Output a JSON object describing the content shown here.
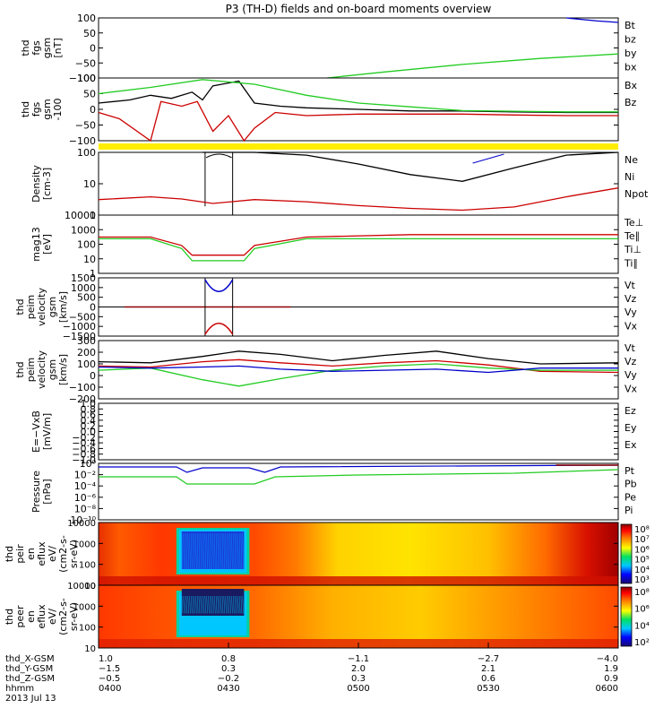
{
  "title": "P3 (TH-D) fields and on-board moments overview",
  "colors": {
    "black": "#000000",
    "red": "#cc0000",
    "green": "#22cc22",
    "blue": "#0000cc",
    "yellow": "#ffee00",
    "darkred": "#8b0000"
  },
  "chart_data": [
    {
      "type": "line",
      "panel": "fgs",
      "ylabel": [
        "thd",
        "fgs",
        "gsm",
        "[nT]"
      ],
      "ylim": [
        -100,
        100
      ],
      "ytick_labels": [
        "100",
        "50",
        "0",
        "−50",
        "−100"
      ],
      "legend": [
        {
          "label": "Bt",
          "color": "#000000"
        },
        {
          "label": "bz",
          "color": "#cc0000"
        },
        {
          "label": "by",
          "color": "#22cc22"
        },
        {
          "label": "bx",
          "color": "#0000cc"
        }
      ],
      "series": [
        {
          "name": "by",
          "color": "#22cc22",
          "x": [
            0.44,
            0.55,
            0.7,
            0.85,
            1.0
          ],
          "y": [
            -100,
            -80,
            -55,
            -35,
            -20
          ]
        },
        {
          "name": "bx",
          "color": "#0000cc",
          "x": [
            0.9,
            0.96,
            1.0
          ],
          "y": [
            100,
            90,
            85
          ]
        }
      ]
    },
    {
      "type": "line",
      "panel": "fgs_nocal",
      "ylabel": [
        "thd",
        "fgs",
        "gsm",
        "-100"
      ],
      "ylim": [
        -100,
        100
      ],
      "ytick_labels": [
        "100",
        "50",
        "0",
        "−50",
        "−100"
      ],
      "legend": [
        {
          "label": "Bx",
          "color": "#000000"
        },
        {
          "label": "Bz",
          "color": "#cc0000"
        }
      ],
      "series": [
        {
          "name": "Bt",
          "color": "#000000",
          "x": [
            0,
            0.06,
            0.1,
            0.14,
            0.18,
            0.2,
            0.22,
            0.27,
            0.3,
            0.35,
            0.4,
            0.5,
            0.6,
            0.7,
            0.8,
            0.9,
            1.0
          ],
          "y": [
            20,
            30,
            45,
            35,
            55,
            30,
            75,
            90,
            20,
            10,
            5,
            0,
            -5,
            -5,
            -8,
            -10,
            -10
          ]
        },
        {
          "name": "Bz",
          "color": "#cc0000",
          "x": [
            0,
            0.04,
            0.1,
            0.12,
            0.16,
            0.19,
            0.22,
            0.25,
            0.28,
            0.3,
            0.34,
            0.4,
            0.5,
            0.6,
            0.7,
            0.8,
            0.9,
            1.0
          ],
          "y": [
            -10,
            -30,
            -100,
            25,
            10,
            25,
            -70,
            -20,
            -110,
            -60,
            -10,
            -20,
            -15,
            -15,
            -15,
            -18,
            -20,
            -20
          ]
        },
        {
          "name": "Bx_green",
          "color": "#22cc22",
          "x": [
            0,
            0.1,
            0.2,
            0.3,
            0.4,
            0.5,
            0.6,
            0.7,
            0.8,
            0.9,
            1.0
          ],
          "y": [
            50,
            70,
            95,
            80,
            45,
            20,
            8,
            -4,
            -6,
            -8,
            -8
          ]
        }
      ]
    },
    {
      "type": "bar",
      "panel": "flag",
      "note": "yellow status bar"
    },
    {
      "type": "line",
      "panel": "density",
      "ylabel": [
        "Density",
        "[cm-3]"
      ],
      "ylim": [
        0.3,
        200
      ],
      "log": true,
      "ytick_labels": [
        "100",
        "10",
        "1"
      ],
      "legend": [
        {
          "label": "Ne",
          "color": "#cc0000"
        },
        {
          "label": "Ni",
          "color": "#000000"
        },
        {
          "label": "Npot",
          "color": "#0000cc"
        }
      ],
      "series": [
        {
          "name": "Ni",
          "color": "#000000",
          "x": [
            0.2,
            0.3,
            0.4,
            0.5,
            0.6,
            0.7,
            0.8,
            0.9,
            1.0
          ],
          "y": [
            200,
            200,
            150,
            60,
            20,
            10,
            40,
            150,
            200
          ]
        },
        {
          "name": "Ne",
          "color": "#cc0000",
          "x": [
            0,
            0.1,
            0.16,
            0.22,
            0.3,
            0.4,
            0.5,
            0.6,
            0.7,
            0.8,
            0.9,
            1.0
          ],
          "y": [
            1.5,
            2,
            1.6,
            1,
            1.5,
            1.2,
            0.8,
            0.6,
            0.5,
            0.7,
            2,
            5
          ]
        }
      ]
    },
    {
      "type": "line",
      "panel": "temperature",
      "ylabel": [
        "mag13",
        "[eV]"
      ],
      "ylim": [
        1,
        15000
      ],
      "log": true,
      "ytick_labels": [
        "10000",
        "1000",
        "100",
        "10",
        "1"
      ],
      "legend": [
        {
          "label": "Te⊥",
          "color": "#cc0000"
        },
        {
          "label": "Te∥",
          "color": "#000000"
        },
        {
          "label": "Ti⊥",
          "color": "#0000cc"
        },
        {
          "label": "Ti∥",
          "color": "#22cc22"
        }
      ],
      "series": [
        {
          "name": "Te⊥",
          "color": "#cc0000",
          "x": [
            0,
            0.1,
            0.16,
            0.18,
            0.28,
            0.3,
            0.4,
            0.6,
            0.8,
            1.0
          ],
          "y": [
            400,
            400,
            100,
            20,
            20,
            100,
            400,
            600,
            600,
            600
          ]
        },
        {
          "name": "Ti∥",
          "color": "#22cc22",
          "x": [
            0,
            0.1,
            0.16,
            0.18,
            0.28,
            0.3,
            0.4,
            0.6,
            0.8,
            1.0
          ],
          "y": [
            300,
            300,
            60,
            8,
            8,
            60,
            300,
            300,
            300,
            300
          ]
        }
      ]
    },
    {
      "type": "line",
      "panel": "velocity1",
      "ylabel": [
        "thd",
        "peim",
        "velocity",
        "gsm",
        "[km/s]"
      ],
      "ylim": [
        -1500,
        1500
      ],
      "ytick_labels": [
        "1500",
        "1000",
        "500",
        "0",
        "−500",
        "−1000",
        "−1500"
      ],
      "legend": [
        {
          "label": "Vt",
          "color": "#000000"
        },
        {
          "label": "Vz",
          "color": "#cc0000"
        },
        {
          "label": "Vy",
          "color": "#22cc22"
        },
        {
          "label": "Vx",
          "color": "#0000cc"
        }
      ]
    },
    {
      "type": "line",
      "panel": "velocity2",
      "ylabel": [
        "thd",
        "peim",
        "velocity",
        "gsm",
        "[km/s]"
      ],
      "ylim": [
        -250,
        300
      ],
      "ytick_labels": [
        "300",
        "200",
        "100",
        "0",
        "−100",
        "−200"
      ],
      "legend": [
        {
          "label": "Vt",
          "color": "#000000"
        },
        {
          "label": "Vz",
          "color": "#cc0000"
        },
        {
          "label": "Vy",
          "color": "#22cc22"
        },
        {
          "label": "Vx",
          "color": "#0000cc"
        }
      ],
      "series": [
        {
          "name": "Vt",
          "color": "#000000",
          "x": [
            0,
            0.1,
            0.2,
            0.27,
            0.35,
            0.45,
            0.55,
            0.65,
            0.75,
            0.85,
            1.0
          ],
          "y": [
            100,
            90,
            150,
            200,
            170,
            110,
            160,
            200,
            130,
            80,
            90
          ]
        },
        {
          "name": "Vz",
          "color": "#cc0000",
          "x": [
            0,
            0.1,
            0.2,
            0.27,
            0.35,
            0.45,
            0.55,
            0.65,
            0.75,
            0.85,
            1.0
          ],
          "y": [
            60,
            50,
            100,
            120,
            90,
            60,
            90,
            110,
            70,
            10,
            0
          ]
        },
        {
          "name": "Vy",
          "color": "#22cc22",
          "x": [
            0,
            0.1,
            0.2,
            0.27,
            0.35,
            0.45,
            0.55,
            0.65,
            0.75,
            0.85,
            1.0
          ],
          "y": [
            20,
            40,
            -70,
            -130,
            -60,
            20,
            60,
            80,
            40,
            20,
            20
          ]
        },
        {
          "name": "Vx",
          "color": "#0000cc",
          "x": [
            0,
            0.1,
            0.2,
            0.27,
            0.35,
            0.45,
            0.55,
            0.65,
            0.75,
            0.85,
            1.0
          ],
          "y": [
            50,
            40,
            50,
            60,
            30,
            10,
            20,
            30,
            0,
            40,
            40
          ]
        }
      ]
    },
    {
      "type": "line",
      "panel": "efield",
      "ylabel": [
        "E=−VxB",
        "[mV/m]"
      ],
      "ylim": [
        -1,
        1
      ],
      "ytick_labels": [
        "1.0",
        "0.8",
        "0.6",
        "0.4",
        "0.2",
        "0.0",
        "−0.2",
        "−0.4",
        "−0.6",
        "−0.8",
        "−1.0"
      ],
      "legend": [
        {
          "label": "Ez",
          "color": "#cc0000"
        },
        {
          "label": "Ey",
          "color": "#22cc22"
        },
        {
          "label": "Ex",
          "color": "#0000cc"
        }
      ]
    },
    {
      "type": "line",
      "panel": "pressure",
      "ylabel": [
        "Pressure",
        "[nPa]"
      ],
      "log": true,
      "ytick_labels": [
        "10⁰",
        "10⁻²",
        "10⁻⁴",
        "10⁻⁶",
        "10⁻⁸",
        "10⁻¹⁰"
      ],
      "legend": [
        {
          "label": "Pt",
          "color": "#000000"
        },
        {
          "label": "Pb",
          "color": "#cc0000"
        },
        {
          "label": "Pe",
          "color": "#22cc22"
        },
        {
          "label": "Pi",
          "color": "#0000cc"
        }
      ]
    },
    {
      "type": "heatmap",
      "panel": "ion_spectrogram",
      "ylabel": [
        "thd",
        "peir",
        "en",
        "eflux",
        "eV/",
        "(cm2-s-",
        "sr-eV)"
      ],
      "ytick_labels": [
        "10000",
        "1000",
        "100",
        "10"
      ],
      "colorbar_labels": [
        "10⁸",
        "10⁷",
        "10⁶",
        "10⁵",
        "10⁴",
        "10³"
      ]
    },
    {
      "type": "heatmap",
      "panel": "electron_spectrogram",
      "ylabel": [
        "thd",
        "peer",
        "en",
        "eflux",
        "eV/",
        "(cm2-s-",
        "sr-eV)"
      ],
      "ytick_labels": [
        "10000",
        "1000",
        "100",
        "10"
      ],
      "colorbar_labels": [
        "10⁸",
        "10⁶",
        "10⁴",
        "10²"
      ]
    }
  ],
  "xaxis": {
    "row_labels": [
      "thd_X-GSM",
      "thd_Y-GSM",
      "thd_Z-GSM",
      "hhmm",
      "2013 Jul 13"
    ],
    "columns": [
      {
        "x": "1.0",
        "y": "−1.5",
        "z": "−0.5",
        "t": "0400"
      },
      {
        "x": "0.8",
        "y": "0.3",
        "z": "−0.2",
        "t": "0430"
      },
      {
        "x": "−1.1",
        "y": "2.0",
        "z": "0.3",
        "t": "0500"
      },
      {
        "x": "−2.7",
        "y": "2.1",
        "z": "0.6",
        "t": "0530"
      },
      {
        "x": "−4.0",
        "y": "1.9",
        "z": "0.9",
        "t": "0600"
      }
    ]
  }
}
